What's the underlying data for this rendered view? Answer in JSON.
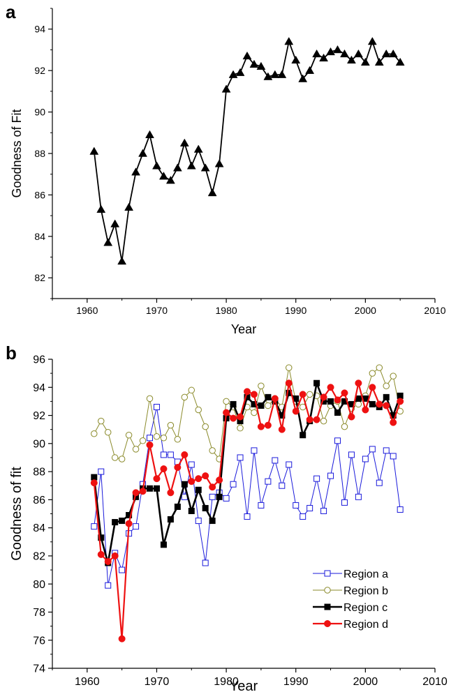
{
  "panels": {
    "a": {
      "letter": "a"
    },
    "b": {
      "letter": "b"
    }
  },
  "chart_data": [
    {
      "type": "line",
      "panel": "a",
      "title": "",
      "xlabel": "Year",
      "ylabel": "Goodness of Fit",
      "xlim": [
        1955,
        2010
      ],
      "ylim": [
        81,
        95
      ],
      "xticks": [
        1960,
        1970,
        1980,
        1990,
        2000,
        2010
      ],
      "yticks": [
        82,
        84,
        86,
        88,
        90,
        92,
        94
      ],
      "grid": false,
      "series": [
        {
          "color": "#000000",
          "marker": "triangle-filled",
          "x": [
            1961,
            1962,
            1963,
            1964,
            1965,
            1966,
            1967,
            1968,
            1969,
            1970,
            1971,
            1972,
            1973,
            1974,
            1975,
            1976,
            1977,
            1978,
            1979,
            1980,
            1981,
            1982,
            1983,
            1984,
            1985,
            1986,
            1987,
            1988,
            1989,
            1990,
            1991,
            1992,
            1993,
            1994,
            1995,
            1996,
            1997,
            1998,
            1999,
            2000,
            2001,
            2002,
            2003,
            2004,
            2005
          ],
          "y": [
            88.1,
            85.3,
            83.7,
            84.6,
            82.8,
            85.4,
            87.1,
            88.0,
            88.9,
            87.4,
            86.9,
            86.7,
            87.3,
            88.5,
            87.4,
            88.2,
            87.3,
            86.1,
            87.5,
            91.1,
            91.8,
            91.9,
            92.7,
            92.3,
            92.2,
            91.7,
            91.8,
            91.8,
            93.4,
            92.5,
            91.6,
            92.0,
            92.8,
            92.6,
            92.9,
            93.0,
            92.8,
            92.5,
            92.8,
            92.4,
            93.4,
            92.4,
            92.8,
            92.8,
            92.4
          ]
        }
      ]
    },
    {
      "type": "line",
      "panel": "b",
      "title": "",
      "xlabel": "Year",
      "ylabel": "Goodness of fit",
      "xlim": [
        1955,
        2010
      ],
      "ylim": [
        74,
        96
      ],
      "xticks": [
        1960,
        1970,
        1980,
        1990,
        2000,
        2010
      ],
      "yticks": [
        74,
        76,
        78,
        80,
        82,
        84,
        86,
        88,
        90,
        92,
        94,
        96
      ],
      "grid": false,
      "legend_position": "bottom-right",
      "series": [
        {
          "name": "Region a",
          "color": "#1a1adb",
          "marker": "square-open",
          "line_width": 1,
          "x": [
            1961,
            1962,
            1963,
            1964,
            1965,
            1966,
            1967,
            1968,
            1969,
            1970,
            1971,
            1972,
            1973,
            1974,
            1975,
            1976,
            1977,
            1978,
            1979,
            1980,
            1981,
            1982,
            1983,
            1984,
            1985,
            1986,
            1987,
            1988,
            1989,
            1990,
            1991,
            1992,
            1993,
            1994,
            1995,
            1996,
            1997,
            1998,
            1999,
            2000,
            2001,
            2002,
            2003,
            2004,
            2005
          ],
          "y": [
            84.1,
            88.0,
            79.9,
            82.2,
            81.0,
            83.6,
            84.1,
            87.1,
            90.4,
            92.6,
            89.2,
            89.2,
            88.7,
            86.2,
            88.5,
            84.5,
            81.5,
            86.2,
            86.5,
            86.1,
            87.1,
            89.0,
            84.8,
            89.5,
            85.6,
            87.3,
            88.8,
            87.0,
            88.5,
            85.6,
            84.8,
            85.4,
            87.5,
            85.2,
            87.7,
            90.2,
            85.8,
            89.2,
            86.2,
            88.9,
            89.6,
            87.2,
            89.5,
            89.1,
            85.3
          ]
        },
        {
          "name": "Region b",
          "color": "#8a8a2a",
          "marker": "circle-open",
          "line_width": 1,
          "x": [
            1961,
            1962,
            1963,
            1964,
            1965,
            1966,
            1967,
            1968,
            1969,
            1970,
            1971,
            1972,
            1973,
            1974,
            1975,
            1976,
            1977,
            1978,
            1979,
            1980,
            1981,
            1982,
            1983,
            1984,
            1985,
            1986,
            1987,
            1988,
            1989,
            1990,
            1991,
            1992,
            1993,
            1994,
            1995,
            1996,
            1997,
            1998,
            1999,
            2000,
            2001,
            2002,
            2003,
            2004,
            2005
          ],
          "y": [
            90.7,
            91.6,
            90.8,
            89.0,
            88.9,
            90.6,
            89.6,
            90.2,
            93.2,
            90.5,
            90.4,
            91.3,
            90.3,
            93.3,
            93.8,
            92.4,
            91.2,
            89.5,
            88.9,
            93.0,
            92.6,
            91.1,
            92.6,
            92.2,
            94.1,
            92.7,
            93.2,
            92.6,
            95.4,
            93.0,
            92.6,
            93.5,
            93.4,
            91.6,
            92.7,
            93.0,
            91.2,
            92.5,
            92.8,
            93.4,
            95.0,
            95.4,
            94.1,
            94.8,
            92.3
          ]
        },
        {
          "name": "Region c",
          "color": "#000000",
          "marker": "square-filled",
          "line_width": 2.6,
          "x": [
            1961,
            1962,
            1963,
            1964,
            1965,
            1966,
            1967,
            1968,
            1969,
            1970,
            1971,
            1972,
            1973,
            1974,
            1975,
            1976,
            1977,
            1978,
            1979,
            1980,
            1981,
            1982,
            1983,
            1984,
            1985,
            1986,
            1987,
            1988,
            1989,
            1990,
            1991,
            1992,
            1993,
            1994,
            1995,
            1996,
            1997,
            1998,
            1999,
            2000,
            2001,
            2002,
            2003,
            2004,
            2005
          ],
          "y": [
            87.6,
            83.3,
            81.5,
            84.4,
            84.5,
            84.9,
            86.2,
            86.8,
            86.8,
            86.8,
            82.8,
            84.6,
            85.5,
            87.1,
            85.2,
            86.7,
            85.4,
            84.5,
            86.2,
            91.8,
            92.8,
            91.6,
            93.3,
            92.8,
            92.7,
            93.3,
            93.0,
            92.0,
            93.6,
            93.2,
            90.6,
            91.6,
            94.3,
            93.0,
            93.0,
            92.2,
            93.0,
            92.8,
            93.2,
            93.2,
            92.8,
            92.6,
            93.3,
            92.0,
            93.4
          ]
        },
        {
          "name": "Region d",
          "color": "#ee1111",
          "marker": "circle-filled",
          "line_width": 2.2,
          "x": [
            1961,
            1962,
            1963,
            1964,
            1965,
            1966,
            1967,
            1968,
            1969,
            1970,
            1971,
            1972,
            1973,
            1974,
            1975,
            1976,
            1977,
            1978,
            1979,
            1980,
            1981,
            1982,
            1983,
            1984,
            1985,
            1986,
            1987,
            1988,
            1989,
            1990,
            1991,
            1992,
            1993,
            1994,
            1995,
            1996,
            1997,
            1998,
            1999,
            2000,
            2001,
            2002,
            2003,
            2004,
            2005
          ],
          "y": [
            87.2,
            82.1,
            81.6,
            82.0,
            76.1,
            84.3,
            86.5,
            86.6,
            89.9,
            87.5,
            88.2,
            86.5,
            88.3,
            89.2,
            87.3,
            87.5,
            87.7,
            86.9,
            87.4,
            92.2,
            91.8,
            91.9,
            93.7,
            93.5,
            91.2,
            91.3,
            93.2,
            91.0,
            94.3,
            92.3,
            93.5,
            91.7,
            91.7,
            93.3,
            94.0,
            93.1,
            93.6,
            91.9,
            94.3,
            92.4,
            94.0,
            92.8,
            92.7,
            91.5,
            93.0
          ]
        }
      ]
    }
  ]
}
